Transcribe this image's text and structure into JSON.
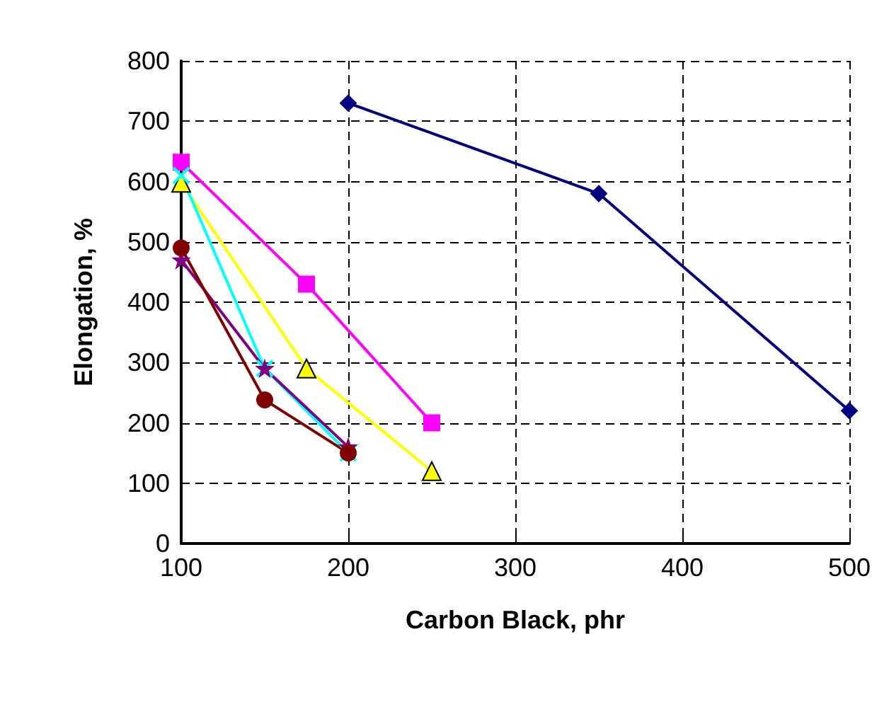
{
  "chart_data": {
    "type": "line",
    "xlabel": "Carbon Black, phr",
    "ylabel": "Elongation, %",
    "xlim": [
      100,
      500
    ],
    "xticks": [
      100,
      200,
      300,
      400,
      500
    ],
    "ylim": [
      0,
      800
    ],
    "yticks": [
      0,
      100,
      200,
      300,
      400,
      500,
      600,
      700,
      800
    ],
    "grid": true,
    "line_style": "solid",
    "series": [
      {
        "color": "#000080",
        "marker": "diamond",
        "x": [
          200,
          350,
          500
        ],
        "values": [
          730,
          580,
          220
        ]
      },
      {
        "color": "#ff00ff",
        "marker": "square",
        "x": [
          100,
          175,
          250
        ],
        "values": [
          632,
          430,
          200
        ]
      },
      {
        "color": "#ffff00",
        "marker": "triangle",
        "x": [
          100,
          175,
          250
        ],
        "values": [
          598,
          290,
          120
        ]
      },
      {
        "color": "#00ffff",
        "marker": "cross",
        "x": [
          100,
          150,
          200
        ],
        "values": [
          610,
          290,
          150
        ]
      },
      {
        "color": "#800080",
        "marker": "star",
        "x": [
          100,
          150,
          200
        ],
        "values": [
          470,
          290,
          160
        ]
      },
      {
        "color": "#800000",
        "marker": "circle",
        "x": [
          100,
          150,
          200
        ],
        "values": [
          490,
          238,
          150
        ]
      }
    ]
  }
}
